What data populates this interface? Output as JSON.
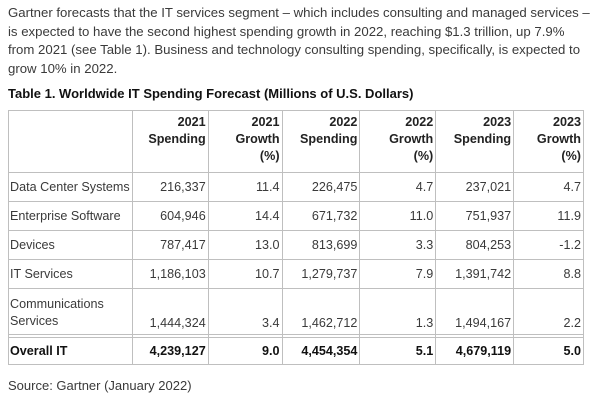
{
  "intro": "Gartner forecasts that the IT services segment – which includes consulting and managed services – is expected to have the second highest spending growth in 2022, reaching $1.3 trillion, up 7.9% from 2021 (see Table 1). Business and technology consulting spending, specifically, is expected to grow 10% in 2022.",
  "table": {
    "caption": "Table 1. Worldwide IT Spending Forecast (Millions of U.S. Dollars)",
    "headers": [
      {
        "year": "2021",
        "label": "Spending",
        "sub": ""
      },
      {
        "year": "2021",
        "label": "Growth",
        "sub": "(%)"
      },
      {
        "year": "2022",
        "label": "Spending",
        "sub": ""
      },
      {
        "year": "2022",
        "label": "Growth",
        "sub": "(%)"
      },
      {
        "year": "2023",
        "label": "Spending",
        "sub": ""
      },
      {
        "year": "2023",
        "label": "Growth",
        "sub": "(%)"
      }
    ],
    "rows": [
      {
        "label": "Data Center Systems",
        "values": [
          "216,337",
          "11.4",
          "226,475",
          "4.7",
          "237,021",
          "4.7"
        ]
      },
      {
        "label": "Enterprise Software",
        "values": [
          "604,946",
          "14.4",
          "671,732",
          "11.0",
          "751,937",
          "11.9"
        ]
      },
      {
        "label": "Devices",
        "values": [
          "787,417",
          "13.0",
          "813,699",
          "3.3",
          "804,253",
          "-1.2"
        ]
      },
      {
        "label": "IT Services",
        "values": [
          "1,186,103",
          "10.7",
          "1,279,737",
          "7.9",
          "1,391,742",
          "8.8"
        ]
      },
      {
        "label_line1": "Communications",
        "label_line2": "Services",
        "values": [
          "1,444,324",
          "3.4",
          "1,462,712",
          "1.3",
          "1,494,167",
          "2.2"
        ]
      }
    ],
    "total": {
      "label": "Overall IT",
      "values": [
        "4,239,127",
        "9.0",
        "4,454,354",
        "5.1",
        "4,679,119",
        "5.0"
      ]
    }
  },
  "source": "Source: Gartner (January 2022)"
}
